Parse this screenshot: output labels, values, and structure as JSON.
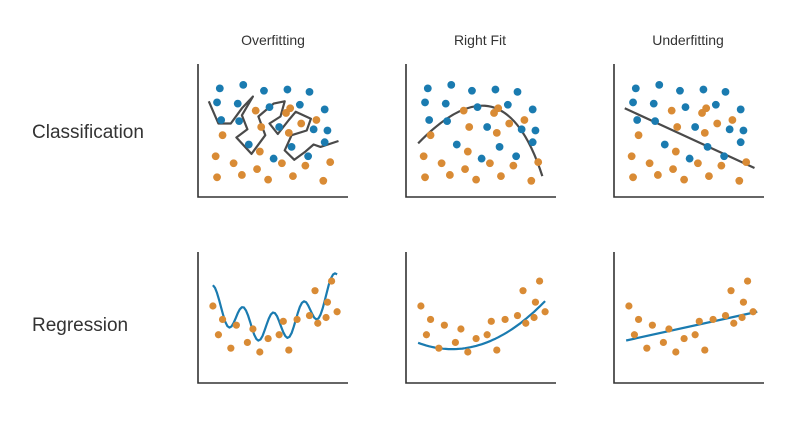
{
  "columns": [
    "Overfitting",
    "Right Fit",
    "Underfitting"
  ],
  "rows": [
    "Classification",
    "Regression"
  ],
  "colors": {
    "class_a": "#1a7bb0",
    "class_b": "#d98b35",
    "boundary": "#4a4a4a",
    "regression_curve": "#1a7bb0",
    "axis": "#333333"
  },
  "classification": {
    "blue_points": [
      [
        1,
        8.6
      ],
      [
        2.7,
        8.9
      ],
      [
        4.2,
        8.4
      ],
      [
        5.9,
        8.5
      ],
      [
        7.5,
        8.3
      ],
      [
        0.8,
        7.4
      ],
      [
        2.3,
        7.3
      ],
      [
        4.6,
        7.0
      ],
      [
        6.8,
        7.2
      ],
      [
        8.6,
        6.8
      ],
      [
        1.1,
        5.9
      ],
      [
        2.4,
        5.8
      ],
      [
        5.3,
        5.3
      ],
      [
        7.8,
        5.1
      ],
      [
        8.8,
        5.0
      ],
      [
        3.1,
        3.8
      ],
      [
        6.2,
        3.6
      ],
      [
        4.9,
        2.6
      ],
      [
        7.4,
        2.8
      ],
      [
        8.6,
        4.0
      ]
    ],
    "orange_points": [
      [
        3.6,
        6.7
      ],
      [
        5.8,
        6.5
      ],
      [
        4.0,
        5.3
      ],
      [
        6.9,
        5.6
      ],
      [
        1.2,
        4.6
      ],
      [
        3.9,
        3.2
      ],
      [
        6.0,
        4.8
      ],
      [
        8.0,
        5.9
      ],
      [
        0.7,
        2.8
      ],
      [
        2.0,
        2.2
      ],
      [
        3.7,
        1.7
      ],
      [
        5.5,
        2.2
      ],
      [
        7.2,
        2.0
      ],
      [
        9.0,
        2.3
      ],
      [
        0.8,
        1.0
      ],
      [
        2.6,
        1.2
      ],
      [
        4.5,
        0.8
      ],
      [
        6.3,
        1.1
      ],
      [
        8.5,
        0.7
      ],
      [
        6.1,
        6.9
      ]
    ]
  },
  "regression": {
    "points": [
      [
        0.5,
        3.6
      ],
      [
        1.2,
        2.9
      ],
      [
        2.2,
        2.6
      ],
      [
        0.9,
        2.1
      ],
      [
        3.0,
        1.7
      ],
      [
        1.8,
        1.4
      ],
      [
        3.9,
        1.2
      ],
      [
        4.5,
        1.9
      ],
      [
        5.3,
        2.1
      ],
      [
        6.0,
        1.3
      ],
      [
        5.6,
        2.8
      ],
      [
        6.6,
        2.9
      ],
      [
        7.5,
        3.1
      ],
      [
        8.1,
        2.7
      ],
      [
        8.7,
        3.0
      ],
      [
        7.9,
        4.4
      ],
      [
        8.8,
        3.8
      ],
      [
        9.5,
        3.3
      ],
      [
        9.1,
        4.9
      ],
      [
        3.4,
        2.4
      ]
    ]
  }
}
